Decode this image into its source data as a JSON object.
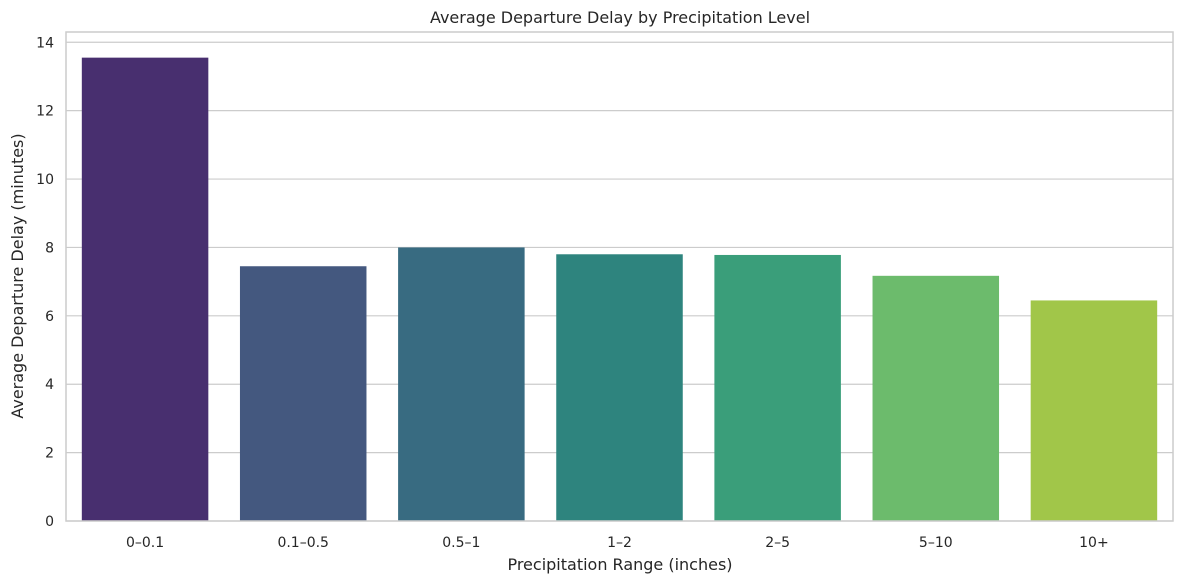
{
  "chart_data": {
    "type": "bar",
    "title": "Average Departure Delay by Precipitation Level",
    "xlabel": "Precipitation Range (inches)",
    "ylabel": "Average Departure Delay (minutes)",
    "categories": [
      "0–0.1",
      "0.1–0.5",
      "0.5–1",
      "1–2",
      "2–5",
      "5–10",
      "10+"
    ],
    "values": [
      13.55,
      7.45,
      8.0,
      7.8,
      7.78,
      7.17,
      6.45
    ],
    "colors": [
      "#482f6f",
      "#44587f",
      "#386b81",
      "#2e847e",
      "#3a9e7a",
      "#6cbb6c",
      "#a1c649"
    ],
    "ylim": [
      0,
      14.3
    ],
    "yticks": [
      0,
      2,
      4,
      6,
      8,
      10,
      12,
      14
    ],
    "grid": "horizontal",
    "legend": "none"
  }
}
